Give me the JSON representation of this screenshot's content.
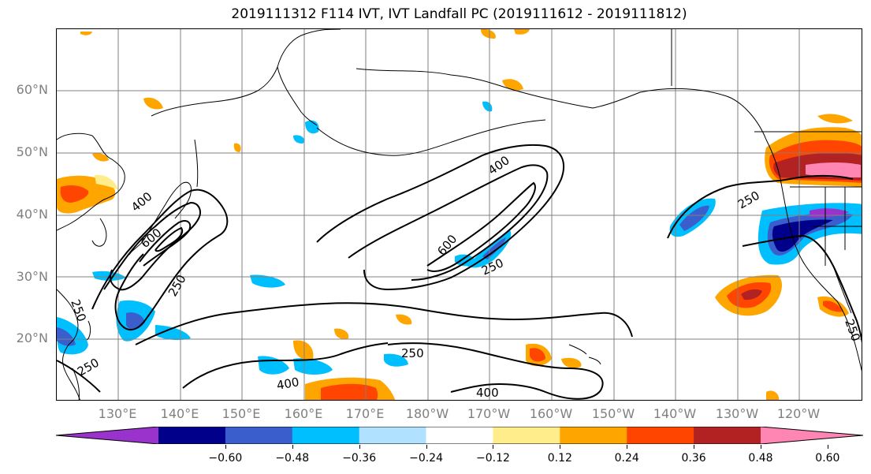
{
  "title": "2019111312 F114 IVT, IVT Landfall PC (2019111612 - 2019111812)",
  "lat_labels": [
    "60°N",
    "50°N",
    "40°N",
    "30°N",
    "20°N"
  ],
  "lon_labels": [
    "130°E",
    "140°E",
    "150°E",
    "160°E",
    "170°E",
    "180°W",
    "170°W",
    "160°W",
    "150°W",
    "140°W",
    "130°W",
    "120°W"
  ],
  "contour_labels": [
    "400",
    "600",
    "250",
    "400",
    "600",
    "250",
    "250",
    "400",
    "250",
    "250",
    "250",
    "400",
    "250"
  ],
  "colorbar": {
    "colors": [
      "#9933cc",
      "#00008b",
      "#3a5fcd",
      "#00bfff",
      "#b0e2ff",
      "#ffffff",
      "#ffec8b",
      "#ffa500",
      "#ff4500",
      "#b22222",
      "#ff85b3"
    ],
    "ticks": [
      "−0.60",
      "−0.48",
      "−0.36",
      "−0.24",
      "−0.12",
      "0.12",
      "0.24",
      "0.36",
      "0.48",
      "0.60"
    ]
  },
  "legend_colors": {
    "coast": "#000000",
    "grid": "#808080",
    "contour": "#000000"
  }
}
